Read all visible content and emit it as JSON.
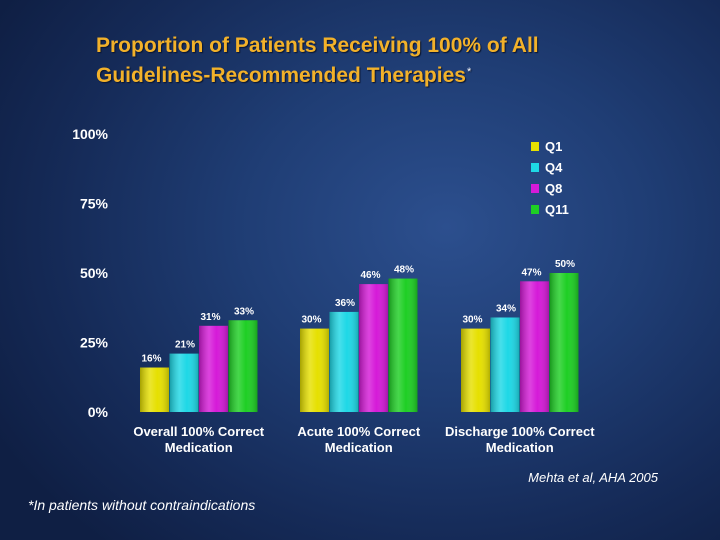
{
  "title": {
    "line1": "Proportion of Patients Receiving 100% of All",
    "line2": "Guidelines-Recommended Therapies",
    "marker": "*"
  },
  "chart_data": {
    "type": "bar",
    "categories": [
      "Overall 100% Correct Medication",
      "Acute 100% Correct Medication",
      "Discharge 100% Correct Medication"
    ],
    "category_lines": [
      [
        "Overall 100% Correct",
        "Medication"
      ],
      [
        "Acute 100% Correct",
        "Medication"
      ],
      [
        "Discharge 100% Correct",
        "Medication"
      ]
    ],
    "series": [
      {
        "name": "Q1",
        "color": "#e6e000",
        "values": [
          16,
          30,
          30
        ]
      },
      {
        "name": "Q4",
        "color": "#1ed8e6",
        "values": [
          21,
          36,
          34
        ]
      },
      {
        "name": "Q8",
        "color": "#d51ad8",
        "values": [
          31,
          46,
          47
        ]
      },
      {
        "name": "Q11",
        "color": "#1ecf24",
        "values": [
          33,
          48,
          50
        ]
      }
    ],
    "value_labels": [
      [
        "16%",
        "21%",
        "31%",
        "33%"
      ],
      [
        "30%",
        "36%",
        "46%",
        "48%"
      ],
      [
        "30%",
        "34%",
        "47%",
        "50%"
      ]
    ],
    "ylim": [
      0,
      100
    ],
    "yticks": [
      0,
      25,
      50,
      75,
      100
    ],
    "ytick_labels": [
      "0%",
      "25%",
      "50%",
      "75%",
      "100%"
    ],
    "legend_position": "top-right"
  },
  "citation": "Mehta et al, AHA 2005",
  "footnote": "*In patients without contraindications"
}
